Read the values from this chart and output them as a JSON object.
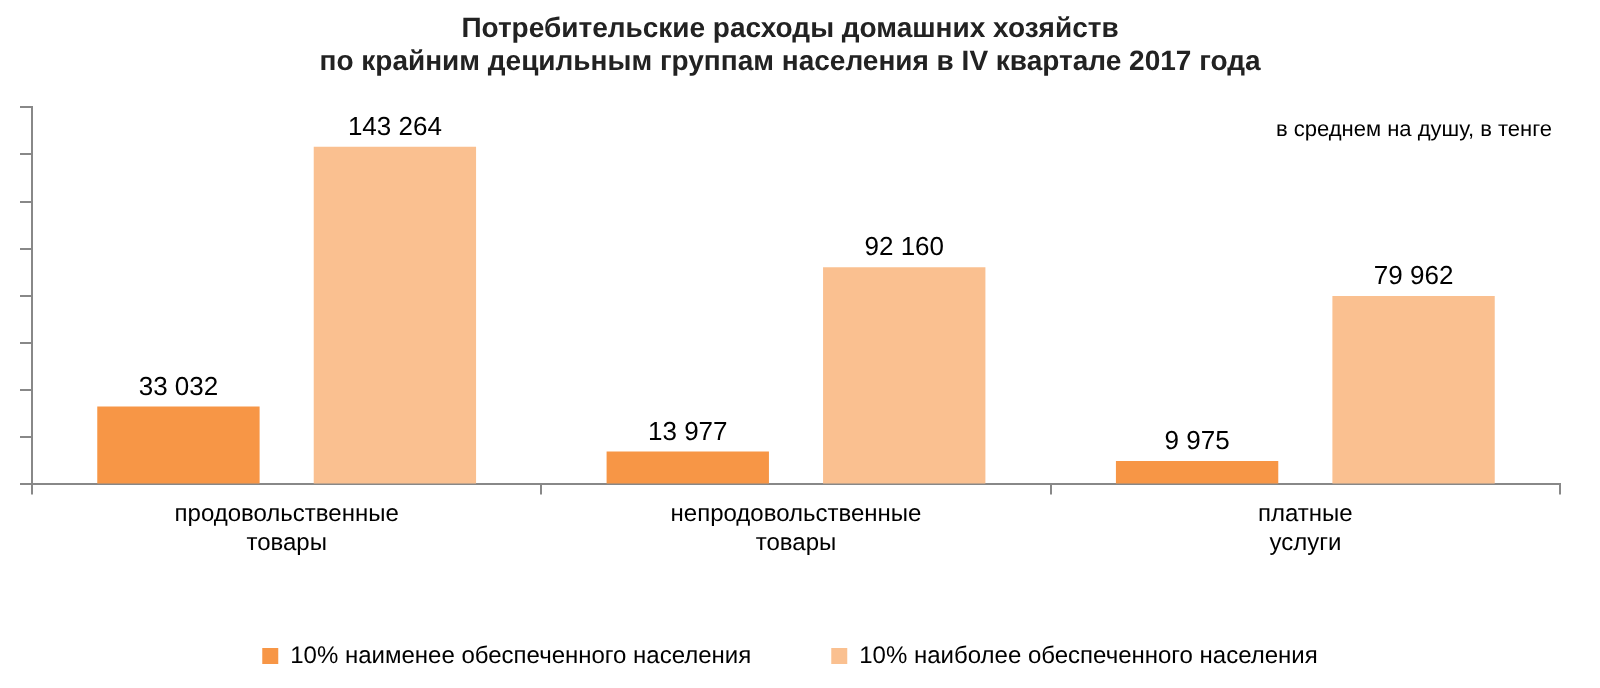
{
  "chart_data": {
    "type": "bar",
    "title": "Потребительские расходы домашних хозяйств по крайним децильным группам населения в IV квартале 2017 года",
    "annotations": [
      "в среднем на душу, в тенге"
    ],
    "categories": [
      "продовольственные товары",
      "непродовольственные товары",
      "платные услуги"
    ],
    "series": [
      {
        "name": "10% наименее обеспеченного населения",
        "color": "#f79646",
        "values": [
          33032,
          13977,
          9975
        ],
        "value_labels": [
          "33 032",
          "13 977",
          "9 975"
        ]
      },
      {
        "name": "10% наиболее обеспеченного населения",
        "color": "#fac090",
        "values": [
          143264,
          92160,
          79962
        ],
        "value_labels": [
          "143 264",
          "92 160",
          "79 962"
        ]
      }
    ],
    "ylim": [
      0,
      160000
    ],
    "yticks": [
      {
        "value": 0,
        "label": null
      },
      {
        "value": 20000,
        "label": null
      },
      {
        "value": 40000,
        "label": null
      },
      {
        "value": 60000,
        "label": null
      },
      {
        "value": 80000,
        "label": null
      },
      {
        "value": 100000,
        "label": null
      },
      {
        "value": 120000,
        "label": null
      },
      {
        "value": 140000,
        "label": null
      },
      {
        "value": 160000,
        "label": null
      }
    ],
    "tick_labels": "x",
    "grid": false,
    "legend": "bottom"
  }
}
